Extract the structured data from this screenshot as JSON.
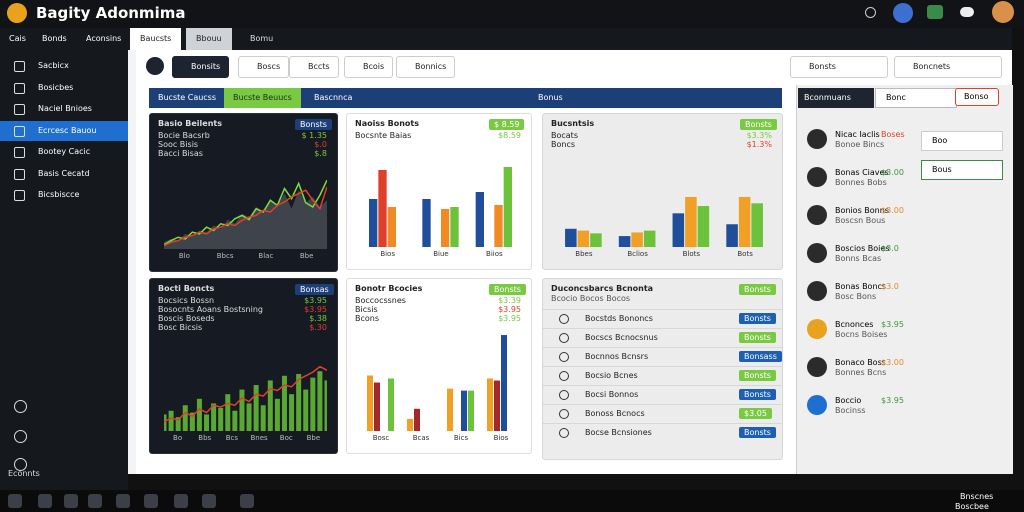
{
  "header": {
    "title": "Bagity Adonmima"
  },
  "sidebar": {
    "tabs": [
      "Cais",
      "Bonds",
      "Aconsins"
    ],
    "items": [
      "Sacbicx",
      "Bosicbes",
      "Naciel Bnioes",
      "Ecrcesc Bauou",
      "Bootey Cacic",
      "Basis Cecatd",
      "Bicsbiscce"
    ],
    "footer": "Econnts"
  },
  "main_tabs": [
    "Baucsts",
    "Bbouu",
    "Bomu"
  ],
  "toolbar": {
    "buttons": [
      "Bonsits",
      "Boscs",
      "Bccts",
      "Bcois",
      "Bonnics"
    ],
    "select_1": "Bonsts",
    "select_2": "Boncnets"
  },
  "banner": {
    "tabs": [
      "Bucste Caucss",
      "Bucste Beuucs",
      "Bascnnca",
      "Bonus"
    ]
  },
  "right_panel": {
    "title": "Bconmuans",
    "search": "Bonc",
    "button": "Bonso",
    "popup_1": "Boo",
    "popup_2": "Bous",
    "people": [
      {
        "name": "Nicac Iaclis",
        "sub": "Bonoe Bincs",
        "value": "Boses"
      },
      {
        "name": "Bonas Ciaves",
        "sub": "Bonnes Bobs",
        "value": "$3.00"
      },
      {
        "name": "Bonios Bonns",
        "sub": "Boscsn Bous",
        "value": "$3.00"
      },
      {
        "name": "Boscios Boies",
        "sub": "Bonns Bcas",
        "value": "$3.0"
      },
      {
        "name": "Bonas Boncs",
        "sub": "Bosc Bons",
        "value": "$3.0"
      },
      {
        "name": "Bcnonces",
        "sub": "Bocns Boises",
        "value": "$3.95"
      },
      {
        "name": "Bonaco Boss",
        "sub": "Bonnes Bcns",
        "value": "$3.00"
      },
      {
        "name": "Boccio",
        "sub": "Bocinss",
        "value": "$3.95"
      }
    ]
  },
  "charts": [
    {
      "type": "line",
      "title": "Basio Beilents",
      "badge": "Bonsts",
      "stats": [
        {
          "label": "Bocie Bacsrb",
          "value": "$ 1.35"
        },
        {
          "label": "Sooc Bisis",
          "value": "$.0"
        },
        {
          "label": "Bacci Bisas",
          "value": "$.8"
        }
      ],
      "axis_labels": [
        "Blo",
        "Bbcs",
        "Blac",
        "Bbe"
      ],
      "ylim": [
        0,
        100
      ],
      "series": [
        {
          "name": "Volume",
          "style": "area",
          "color": "#4a4f57",
          "values": [
            8,
            12,
            10,
            18,
            15,
            22,
            20,
            28,
            24,
            35,
            30,
            42,
            38,
            50,
            45,
            60,
            52,
            66,
            48,
            70,
            55,
            62,
            50,
            58
          ]
        },
        {
          "name": "Basio",
          "style": "line",
          "color": "#7fdc3c",
          "values": [
            5,
            10,
            14,
            12,
            20,
            18,
            26,
            22,
            30,
            28,
            36,
            40,
            35,
            48,
            44,
            58,
            52,
            72,
            60,
            78,
            55,
            50,
            64,
            82
          ]
        },
        {
          "name": "Bicsi",
          "style": "line",
          "color": "#e0402a",
          "values": [
            4,
            8,
            10,
            14,
            16,
            20,
            18,
            24,
            26,
            30,
            28,
            34,
            38,
            40,
            46,
            44,
            52,
            56,
            62,
            66,
            70,
            58,
            48,
            74
          ]
        }
      ]
    },
    {
      "type": "bar",
      "title": "Naoiss Bonots",
      "badge": "$ 8.59",
      "stats": [
        {
          "label": "Bocsnte Baias",
          "value": "$8.59"
        }
      ],
      "categories": [
        "Bios",
        "Biue",
        "Biios"
      ],
      "ylim": [
        0,
        100
      ],
      "series": [
        {
          "name": "A",
          "color": "#1f4e9a",
          "values": [
            48,
            48,
            55
          ]
        },
        {
          "name": "B",
          "color": "#e0402a",
          "values": [
            77,
            0,
            0
          ]
        },
        {
          "name": "C",
          "color": "#f08a24",
          "values": [
            40,
            38,
            42
          ]
        },
        {
          "name": "D",
          "color": "#6cc23a",
          "values": [
            0,
            40,
            80
          ]
        }
      ]
    },
    {
      "type": "bar",
      "title": "Bucsntsis",
      "badge": "Bonsts",
      "stats": [
        {
          "label": "Bocats",
          "value": "$3.3%"
        },
        {
          "label": "Boncs",
          "value": "$1.3%"
        }
      ],
      "categories": [
        "Bbes",
        "Bclios",
        "Blots",
        "Bots"
      ],
      "ylim": [
        0,
        100
      ],
      "series": [
        {
          "name": "A",
          "color": "#1f4e9a",
          "values": [
            20,
            12,
            37,
            25
          ]
        },
        {
          "name": "B",
          "color": "#f0a024",
          "values": [
            18,
            16,
            55,
            55
          ]
        },
        {
          "name": "C",
          "color": "#6cc23a",
          "values": [
            15,
            18,
            45,
            48
          ]
        }
      ]
    },
    {
      "type": "combo",
      "title": "Bocti Boncts",
      "badge": "Bonsas",
      "stats": [
        {
          "label": "Bocsics Bossn",
          "value": "$3.95"
        },
        {
          "label": "Bosocnts Aoans Bostsning",
          "value": "$3.95"
        },
        {
          "label": "Boscis Boseds",
          "value": "$.38"
        },
        {
          "label": "Bosc Bicsis",
          "value": "$.30"
        }
      ],
      "axis_labels": [
        "Bo",
        "Bbs",
        "Bcs",
        "Bnes",
        "Boc",
        "Bbe"
      ],
      "ylim": [
        0,
        100
      ],
      "series": [
        {
          "name": "Bars",
          "style": "bar",
          "color": "#5aa832",
          "values": [
            18,
            22,
            15,
            28,
            20,
            35,
            18,
            30,
            25,
            40,
            22,
            45,
            30,
            50,
            28,
            55,
            35,
            60,
            40,
            62,
            45,
            58,
            65,
            55
          ]
        },
        {
          "name": "Line",
          "style": "line",
          "color": "#e0402a",
          "values": [
            10,
            14,
            12,
            20,
            16,
            24,
            20,
            28,
            26,
            30,
            28,
            36,
            32,
            40,
            38,
            46,
            44,
            50,
            48,
            56,
            60,
            64,
            70,
            66
          ]
        }
      ]
    },
    {
      "type": "bar",
      "title": "Bonotr Bcocies",
      "badge": "Bonsts",
      "stats": [
        {
          "label": "Boccocssnes",
          "value": "$3.39"
        },
        {
          "label": "Bicsis",
          "value": "$3.95"
        },
        {
          "label": "Bcons",
          "value": "$3.95"
        }
      ],
      "categories": [
        "Bosc",
        "Bcas",
        "Bics",
        "Bios"
      ],
      "ylim": [
        0,
        100
      ],
      "series": [
        {
          "name": "A",
          "color": "#f0a024",
          "values": [
            55,
            12,
            42,
            52
          ]
        },
        {
          "name": "B",
          "color": "#a32a2a",
          "values": [
            48,
            22,
            0,
            50
          ]
        },
        {
          "name": "C",
          "color": "#1f4e9a",
          "values": [
            0,
            0,
            40,
            95
          ]
        },
        {
          "name": "D",
          "color": "#6cc23a",
          "values": [
            52,
            0,
            40,
            0
          ]
        }
      ]
    }
  ],
  "list": {
    "title": "Duconcsbarcs Bcnonta",
    "subtitle": "Bcocio Bocos Bocos",
    "badge": "Bonsts",
    "rows": [
      {
        "label": "Bocstds Bononcs",
        "badge": "Bonsts"
      },
      {
        "label": "Bocscs Bcnocsnus",
        "badge": "Bonsts"
      },
      {
        "label": "Bocnnos Bcnsrs",
        "badge": "Bonsass"
      },
      {
        "label": "Bocsio Bcnes",
        "badge": "Bonsts"
      },
      {
        "label": "Bocsi Bonnos",
        "badge": "Bonsts"
      },
      {
        "label": "Bonoss Bcnocs",
        "badge": "$3.05"
      },
      {
        "label": "Bocse Bcnsiones",
        "badge": "Bonsts"
      }
    ]
  },
  "taskbar": {
    "time": "Bnscnes",
    "date": "Boscbee"
  }
}
